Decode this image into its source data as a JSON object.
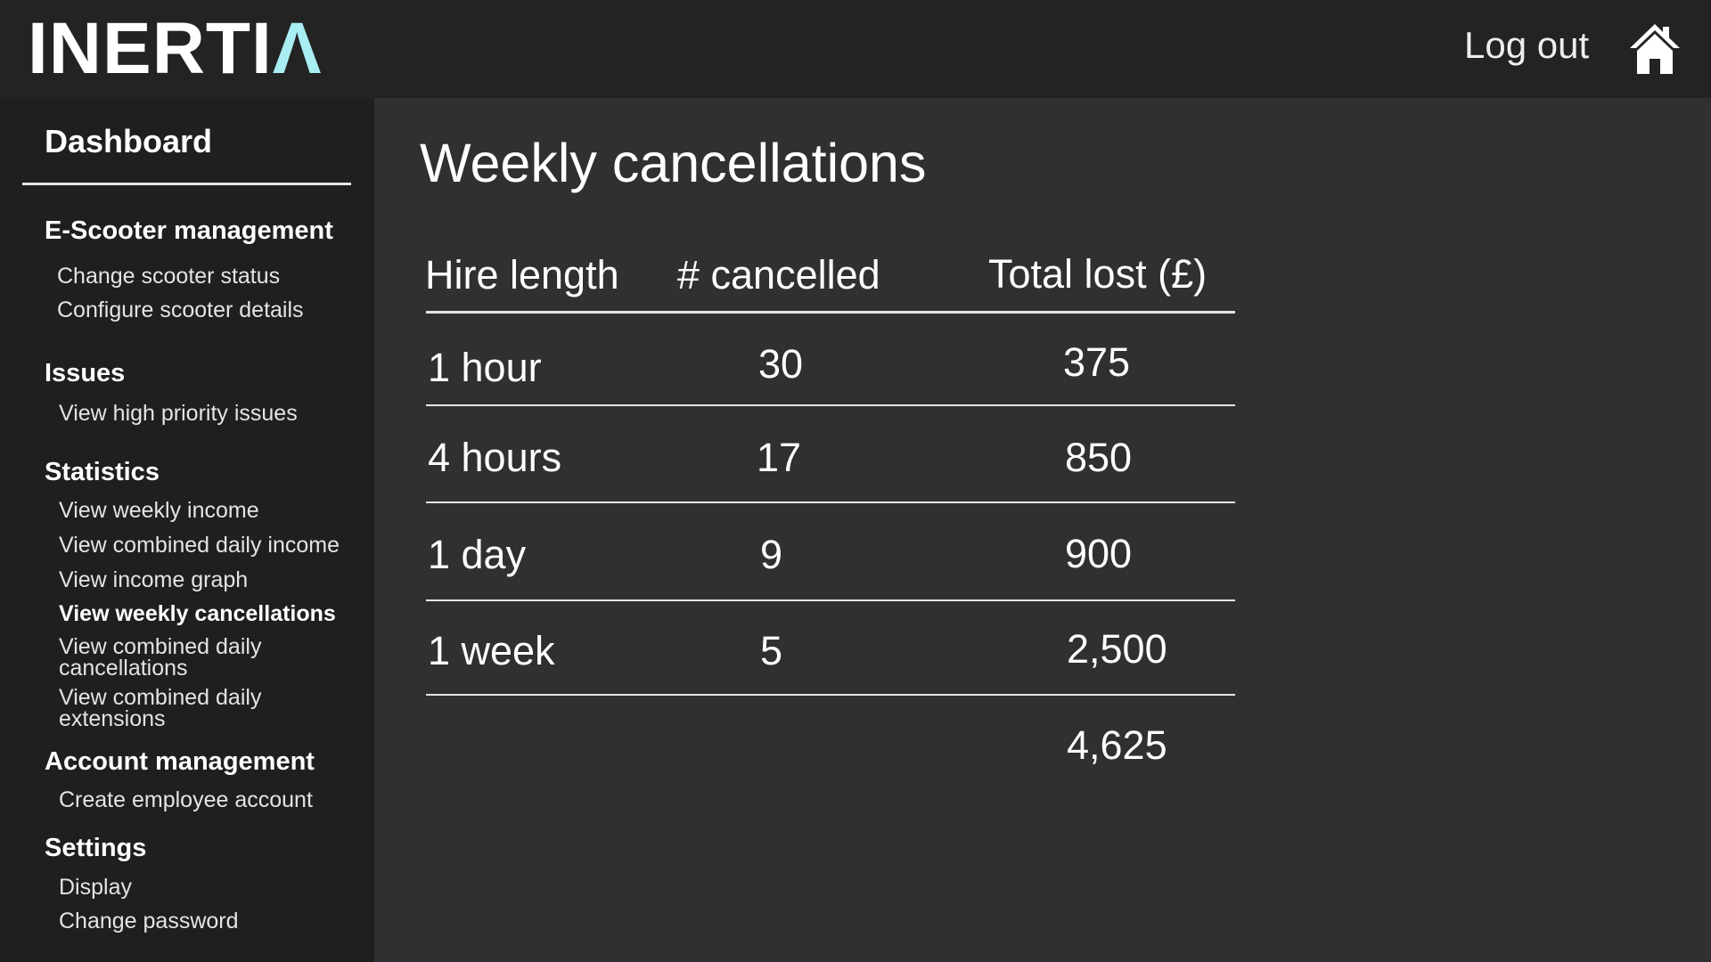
{
  "header": {
    "logo_main": "INERTI",
    "logo_accent": "Λ",
    "logout_label": "Log out"
  },
  "sidebar": {
    "dashboard_label": "Dashboard",
    "sections": [
      {
        "title": "E-Scooter management",
        "items": [
          "Change scooter status",
          "Configure scooter details"
        ]
      },
      {
        "title": "Issues",
        "items": [
          "View high priority issues"
        ]
      },
      {
        "title": "Statistics",
        "items": [
          "View weekly income",
          "View combined daily income",
          "View income graph",
          "View weekly cancellations",
          "View combined daily cancellations",
          "View combined daily extensions"
        ]
      },
      {
        "title": "Account management",
        "items": [
          "Create employee account"
        ]
      },
      {
        "title": "Settings",
        "items": [
          "Display",
          "Change password"
        ]
      }
    ],
    "multiline_items": {
      "combined_cancellations": [
        "View combined daily",
        "cancellations"
      ],
      "combined_extensions": [
        "View combined daily",
        "extensions"
      ]
    }
  },
  "main": {
    "title": "Weekly cancellations",
    "table": {
      "headers": [
        "Hire length",
        "# cancelled",
        "Total lost (£)"
      ],
      "rows": [
        [
          "1 hour",
          "30",
          "375"
        ],
        [
          "4 hours",
          "17",
          "850"
        ],
        [
          "1 day",
          "9",
          "900"
        ],
        [
          "1 week",
          "5",
          "2,500"
        ]
      ],
      "total": "4,625"
    }
  },
  "colors": {
    "topbar": "#232323",
    "sidebar": "#1f1f1f",
    "content": "#303032",
    "accent": "#a8eef3",
    "text": "#ffffff"
  },
  "icons": {
    "home": "home-icon"
  }
}
